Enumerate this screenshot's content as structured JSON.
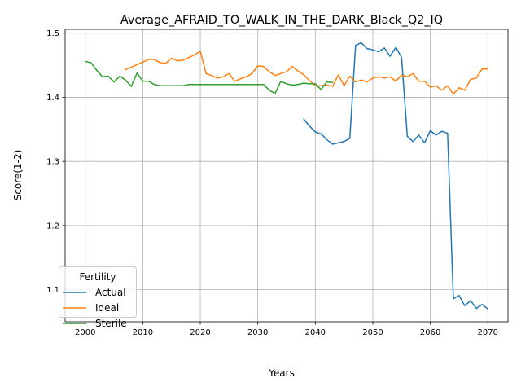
{
  "chart_data": {
    "type": "line",
    "title": "Average_AFRAID_TO_WALK_IN_THE_DARK_Black_Q2_IQ",
    "xlabel": "Years",
    "ylabel": "Score(1-2)",
    "xlim": [
      1996.5,
      2073.5
    ],
    "ylim": [
      1.05,
      1.506
    ],
    "xticks": [
      2000,
      2010,
      2020,
      2030,
      2040,
      2050,
      2060,
      2070
    ],
    "yticks": [
      1.1,
      1.2,
      1.3,
      1.4,
      1.5
    ],
    "grid": true,
    "legend": {
      "title": "Fertility",
      "placement": "lower left"
    },
    "series": [
      {
        "name": "Actual",
        "color": "#1f77b4",
        "x": [
          2038,
          2039,
          2040,
          2041,
          2042,
          2043,
          2044,
          2045,
          2046,
          2047,
          2048,
          2049,
          2050,
          2051,
          2052,
          2053,
          2054,
          2055,
          2056,
          2057,
          2058,
          2059,
          2060,
          2061,
          2062,
          2063,
          2064,
          2065,
          2066,
          2067,
          2068,
          2069,
          2070
        ],
        "y": [
          1.366,
          1.355,
          1.346,
          1.343,
          1.334,
          1.327,
          1.329,
          1.331,
          1.336,
          1.481,
          1.485,
          1.476,
          1.474,
          1.471,
          1.477,
          1.464,
          1.478,
          1.462,
          1.339,
          1.331,
          1.341,
          1.329,
          1.348,
          1.341,
          1.347,
          1.344,
          1.086,
          1.091,
          1.075,
          1.083,
          1.071,
          1.077,
          1.07
        ]
      },
      {
        "name": "Ideal",
        "color": "#ff7f0e",
        "x": [
          2007,
          2008,
          2009,
          2010,
          2011,
          2012,
          2013,
          2014,
          2015,
          2016,
          2017,
          2018,
          2019,
          2020,
          2021,
          2022,
          2023,
          2024,
          2025,
          2026,
          2027,
          2028,
          2029,
          2030,
          2031,
          2032,
          2033,
          2034,
          2035,
          2036,
          2037,
          2038,
          2039,
          2040,
          2041,
          2042,
          2043,
          2044,
          2045,
          2046,
          2047,
          2048,
          2049,
          2050,
          2051,
          2052,
          2053,
          2054,
          2055,
          2056,
          2057,
          2058,
          2059,
          2060,
          2061,
          2062,
          2063,
          2064,
          2065,
          2066,
          2067,
          2068,
          2069,
          2070
        ],
        "y": [
          1.443,
          1.447,
          1.451,
          1.455,
          1.459,
          1.459,
          1.454,
          1.453,
          1.461,
          1.457,
          1.458,
          1.462,
          1.466,
          1.472,
          1.437,
          1.434,
          1.43,
          1.432,
          1.437,
          1.425,
          1.429,
          1.432,
          1.437,
          1.449,
          1.448,
          1.44,
          1.434,
          1.437,
          1.44,
          1.448,
          1.441,
          1.435,
          1.426,
          1.418,
          1.418,
          1.419,
          1.417,
          1.435,
          1.418,
          1.433,
          1.424,
          1.427,
          1.424,
          1.43,
          1.432,
          1.43,
          1.432,
          1.425,
          1.435,
          1.432,
          1.437,
          1.425,
          1.425,
          1.416,
          1.418,
          1.411,
          1.418,
          1.405,
          1.415,
          1.411,
          1.428,
          1.43,
          1.444,
          1.444
        ]
      },
      {
        "name": "Sterile",
        "color": "#2ca02c",
        "x": [
          2000,
          2001,
          2002,
          2003,
          2004,
          2005,
          2006,
          2007,
          2008,
          2009,
          2010,
          2011,
          2012,
          2013,
          2014,
          2015,
          2016,
          2017,
          2018,
          2019,
          2020,
          2021,
          2022,
          2023,
          2024,
          2025,
          2026,
          2027,
          2028,
          2029,
          2030,
          2031,
          2032,
          2033,
          2034,
          2035,
          2036,
          2037,
          2038,
          2039,
          2040,
          2041,
          2042,
          2043
        ],
        "y": [
          1.456,
          1.454,
          1.442,
          1.432,
          1.433,
          1.424,
          1.433,
          1.427,
          1.417,
          1.438,
          1.425,
          1.425,
          1.42,
          1.418,
          1.418,
          1.418,
          1.418,
          1.418,
          1.42,
          1.42,
          1.42,
          1.42,
          1.42,
          1.42,
          1.42,
          1.42,
          1.42,
          1.42,
          1.42,
          1.42,
          1.42,
          1.42,
          1.411,
          1.406,
          1.425,
          1.421,
          1.419,
          1.42,
          1.422,
          1.421,
          1.421,
          1.412,
          1.424,
          1.423
        ]
      }
    ]
  }
}
